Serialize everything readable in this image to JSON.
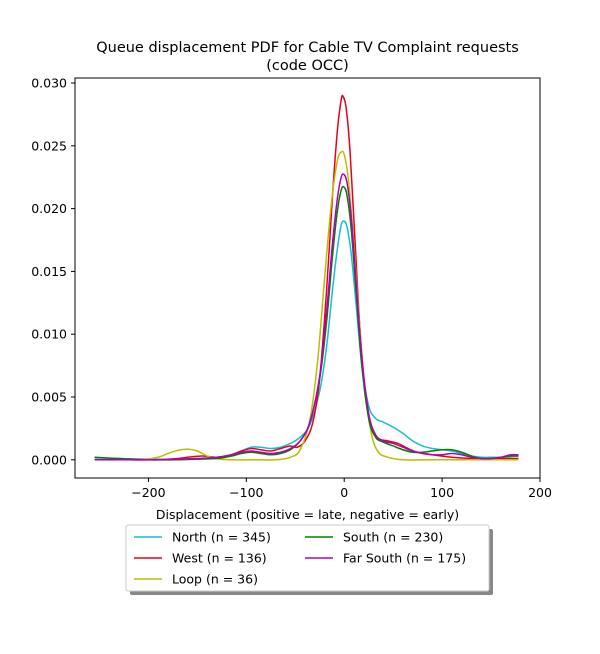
{
  "chart_data": {
    "type": "line",
    "title_line1": "Queue displacement PDF for Cable TV Complaint  requests",
    "title_line2": "(code OCC)",
    "xlabel": "Displacement (positive = late, negative = early)",
    "ylabel": "",
    "xlim": [
      -275,
      200
    ],
    "ylim": [
      -0.00145,
      0.0304
    ],
    "xticks": [
      -200,
      -100,
      0,
      100,
      200
    ],
    "xtick_labels": [
      "−200",
      "−100",
      "0",
      "100",
      "200"
    ],
    "yticks": [
      0.0,
      0.005,
      0.01,
      0.015,
      0.02,
      0.025,
      0.03
    ],
    "ytick_labels": [
      "0.000",
      "0.005",
      "0.010",
      "0.015",
      "0.020",
      "0.025",
      "0.030"
    ],
    "grid": false,
    "legend_placement": "below plot",
    "series": [
      {
        "name": "North (n = 345)",
        "color": "#17becf",
        "points": [
          [
            -255,
            0.00015
          ],
          [
            -230,
            0.0001
          ],
          [
            -200,
            5e-05
          ],
          [
            -170,
            5e-05
          ],
          [
            -140,
            0.0001
          ],
          [
            -120,
            0.0003
          ],
          [
            -105,
            0.0007
          ],
          [
            -95,
            0.001
          ],
          [
            -85,
            0.001
          ],
          [
            -75,
            0.0009
          ],
          [
            -65,
            0.001
          ],
          [
            -55,
            0.0013
          ],
          [
            -45,
            0.0018
          ],
          [
            -35,
            0.0028
          ],
          [
            -25,
            0.0055
          ],
          [
            -18,
            0.009
          ],
          [
            -12,
            0.0135
          ],
          [
            -7,
            0.0168
          ],
          [
            -3,
            0.0187
          ],
          [
            0,
            0.019
          ],
          [
            3,
            0.0185
          ],
          [
            7,
            0.0165
          ],
          [
            12,
            0.0125
          ],
          [
            18,
            0.0075
          ],
          [
            25,
            0.0043
          ],
          [
            32,
            0.0033
          ],
          [
            40,
            0.003
          ],
          [
            50,
            0.0026
          ],
          [
            60,
            0.0021
          ],
          [
            70,
            0.0015
          ],
          [
            80,
            0.0011
          ],
          [
            90,
            0.0009
          ],
          [
            100,
            0.0008
          ],
          [
            110,
            0.0007
          ],
          [
            120,
            0.0005
          ],
          [
            130,
            0.0003
          ],
          [
            140,
            0.0002
          ],
          [
            150,
            0.0002
          ],
          [
            160,
            0.0002
          ],
          [
            170,
            0.00025
          ],
          [
            178,
            0.0003
          ]
        ]
      },
      {
        "name": "West (n = 136)",
        "color": "#e8001c",
        "points": [
          [
            -255,
            0.0
          ],
          [
            -220,
            0.0
          ],
          [
            -190,
            0.0
          ],
          [
            -170,
            0.0001
          ],
          [
            -160,
            0.0002
          ],
          [
            -145,
            0.0003
          ],
          [
            -130,
            0.0002
          ],
          [
            -115,
            0.0004
          ],
          [
            -105,
            0.0007
          ],
          [
            -95,
            0.0009
          ],
          [
            -85,
            0.0008
          ],
          [
            -75,
            0.0007
          ],
          [
            -65,
            0.0009
          ],
          [
            -55,
            0.0011
          ],
          [
            -48,
            0.001
          ],
          [
            -40,
            0.0015
          ],
          [
            -32,
            0.003
          ],
          [
            -25,
            0.0065
          ],
          [
            -18,
            0.0135
          ],
          [
            -12,
            0.021
          ],
          [
            -7,
            0.0262
          ],
          [
            -3,
            0.0287
          ],
          [
            -1,
            0.0289
          ],
          [
            2,
            0.028
          ],
          [
            6,
            0.0245
          ],
          [
            11,
            0.0175
          ],
          [
            16,
            0.0105
          ],
          [
            22,
            0.005
          ],
          [
            28,
            0.0025
          ],
          [
            35,
            0.0017
          ],
          [
            45,
            0.0015
          ],
          [
            55,
            0.0013
          ],
          [
            65,
            0.0009
          ],
          [
            75,
            0.0006
          ],
          [
            90,
            0.0004
          ],
          [
            110,
            0.0002
          ],
          [
            130,
            0.0001
          ],
          [
            150,
            0.0001
          ],
          [
            178,
            0.0001
          ]
        ]
      },
      {
        "name": "Loop (n = 36)",
        "color": "#bcbd00",
        "points": [
          [
            -255,
            0.0
          ],
          [
            -230,
            0.0
          ],
          [
            -205,
            3e-05
          ],
          [
            -190,
            0.0002
          ],
          [
            -180,
            0.0005
          ],
          [
            -170,
            0.00075
          ],
          [
            -160,
            0.00085
          ],
          [
            -150,
            0.0007
          ],
          [
            -140,
            0.0003
          ],
          [
            -130,
            8e-05
          ],
          [
            -115,
            0.0
          ],
          [
            -90,
            0.0
          ],
          [
            -70,
            0.0
          ],
          [
            -55,
            0.0002
          ],
          [
            -45,
            0.0008
          ],
          [
            -35,
            0.0032
          ],
          [
            -27,
            0.008
          ],
          [
            -20,
            0.0145
          ],
          [
            -13,
            0.0205
          ],
          [
            -7,
            0.0238
          ],
          [
            -3,
            0.0245
          ],
          [
            0,
            0.0243
          ],
          [
            4,
            0.0225
          ],
          [
            9,
            0.018
          ],
          [
            15,
            0.0115
          ],
          [
            21,
            0.0057
          ],
          [
            28,
            0.002
          ],
          [
            35,
            0.0006
          ],
          [
            45,
            0.0002
          ],
          [
            60,
            0.0
          ],
          [
            90,
            0.0
          ],
          [
            120,
            0.0
          ],
          [
            150,
            0.0
          ],
          [
            178,
            0.0
          ]
        ]
      },
      {
        "name": "South (n = 230)",
        "color": "#008000",
        "points": [
          [
            -255,
            0.0002
          ],
          [
            -230,
            0.0001
          ],
          [
            -200,
            0.0
          ],
          [
            -170,
            0.0
          ],
          [
            -150,
            5e-05
          ],
          [
            -130,
            0.0001
          ],
          [
            -115,
            0.0003
          ],
          [
            -105,
            0.0005
          ],
          [
            -95,
            0.0006
          ],
          [
            -85,
            0.0005
          ],
          [
            -75,
            0.0004
          ],
          [
            -65,
            0.0005
          ],
          [
            -55,
            0.0008
          ],
          [
            -45,
            0.0015
          ],
          [
            -35,
            0.003
          ],
          [
            -25,
            0.0065
          ],
          [
            -18,
            0.011
          ],
          [
            -12,
            0.0162
          ],
          [
            -7,
            0.0198
          ],
          [
            -3,
            0.0215
          ],
          [
            0,
            0.0217
          ],
          [
            3,
            0.021
          ],
          [
            7,
            0.0185
          ],
          [
            12,
            0.0135
          ],
          [
            18,
            0.0075
          ],
          [
            25,
            0.0033
          ],
          [
            32,
            0.0018
          ],
          [
            40,
            0.0014
          ],
          [
            50,
            0.0011
          ],
          [
            60,
            0.0008
          ],
          [
            70,
            0.0006
          ],
          [
            80,
            0.0006
          ],
          [
            90,
            0.0007
          ],
          [
            100,
            0.0008
          ],
          [
            110,
            0.0008
          ],
          [
            120,
            0.0006
          ],
          [
            130,
            0.0003
          ],
          [
            140,
            0.0001
          ],
          [
            150,
            0.0001
          ],
          [
            160,
            0.0002
          ],
          [
            170,
            0.0003
          ],
          [
            178,
            0.0003
          ]
        ]
      },
      {
        "name": "Far South (n = 175)",
        "color": "#b000b8",
        "points": [
          [
            -255,
            0.0
          ],
          [
            -230,
            0.0
          ],
          [
            -200,
            0.0
          ],
          [
            -170,
            5e-05
          ],
          [
            -150,
            0.0001
          ],
          [
            -130,
            0.0002
          ],
          [
            -115,
            0.0004
          ],
          [
            -105,
            0.0006
          ],
          [
            -95,
            0.0007
          ],
          [
            -85,
            0.0006
          ],
          [
            -75,
            0.0005
          ],
          [
            -65,
            0.0006
          ],
          [
            -55,
            0.0009
          ],
          [
            -45,
            0.0015
          ],
          [
            -35,
            0.003
          ],
          [
            -25,
            0.0067
          ],
          [
            -18,
            0.0118
          ],
          [
            -12,
            0.0172
          ],
          [
            -7,
            0.0208
          ],
          [
            -3,
            0.0225
          ],
          [
            0,
            0.0227
          ],
          [
            3,
            0.022
          ],
          [
            7,
            0.0195
          ],
          [
            12,
            0.0143
          ],
          [
            18,
            0.0082
          ],
          [
            25,
            0.0037
          ],
          [
            32,
            0.002
          ],
          [
            40,
            0.0015
          ],
          [
            50,
            0.0013
          ],
          [
            60,
            0.001
          ],
          [
            70,
            0.0007
          ],
          [
            80,
            0.0005
          ],
          [
            90,
            0.0004
          ],
          [
            100,
            0.0004
          ],
          [
            110,
            0.0005
          ],
          [
            120,
            0.0004
          ],
          [
            130,
            0.0002
          ],
          [
            140,
            0.0001
          ],
          [
            150,
            0.0001
          ],
          [
            160,
            0.0002
          ],
          [
            170,
            0.0004
          ],
          [
            178,
            0.0004
          ]
        ]
      }
    ]
  }
}
